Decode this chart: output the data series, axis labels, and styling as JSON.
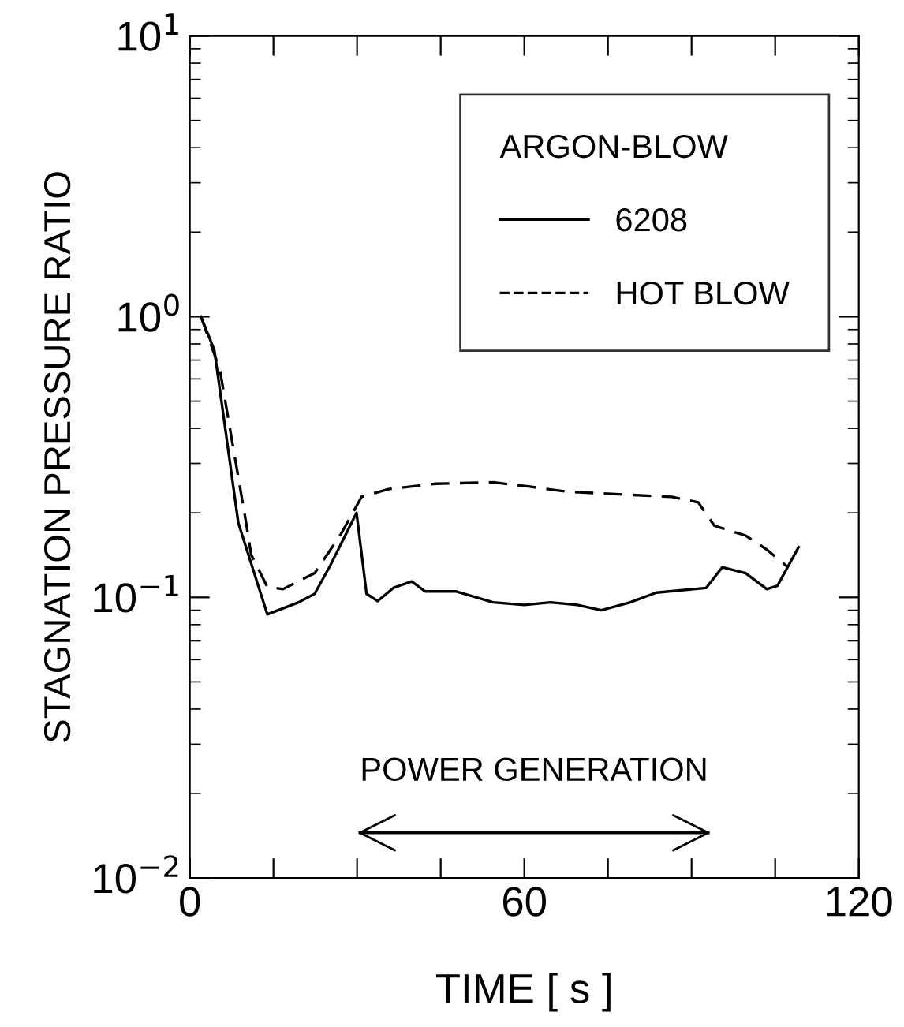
{
  "chart_data": {
    "type": "line",
    "xlabel": "TIME [ s ]",
    "ylabel": "STAGNATION PRESSURE RATIO",
    "legend_title": "ARGON-BLOW",
    "xlim": [
      0,
      120
    ],
    "ylim": [
      0.01,
      10
    ],
    "log": "y",
    "xticks": [
      0,
      {
        "value": 15,
        "label": null
      },
      {
        "value": 30,
        "label": null
      },
      {
        "value": 45,
        "label": null
      },
      60,
      {
        "value": 75,
        "label": null
      },
      {
        "value": 90,
        "label": null
      },
      {
        "value": 105,
        "label": null
      },
      120
    ],
    "yticks": [
      {
        "value": 0.01,
        "label": "10$^{−2}$"
      },
      {
        "value": 0.1,
        "label": "10$^{−1}$"
      },
      {
        "value": 1,
        "label": "10$^{0}$"
      },
      {
        "value": 10,
        "label": "10$^{1}$"
      }
    ],
    "grid": false,
    "legend": "top right",
    "marker": "none",
    "annotations": [
      {
        "text": "POWER GENERATION",
        "x": 61.75,
        "y": 0.0145
      }
    ],
    "series": [
      {
        "name": "6208",
        "color": "#000000",
        "line_style": "solid",
        "x": [
          2,
          4.4,
          8.7,
          13.9,
          19.5,
          22.4,
          25.2,
          29.9,
          31.7,
          33.7,
          36.5,
          39.8,
          42.2,
          47.8,
          54.4,
          60,
          64.7,
          69.5,
          73.8,
          79,
          83.7,
          92.6,
          95.5,
          99.7,
          103.5,
          105.4,
          109.2
        ],
        "values": [
          1.0,
          0.76,
          0.184,
          0.087,
          0.096,
          0.103,
          0.13,
          0.2,
          0.103,
          0.097,
          0.108,
          0.114,
          0.105,
          0.105,
          0.096,
          0.094,
          0.096,
          0.094,
          0.09,
          0.096,
          0.104,
          0.108,
          0.128,
          0.122,
          0.107,
          0.11,
          0.151
        ]
      },
      {
        "name": "HOT BLOW",
        "color": "#000000",
        "line_style": "dashed",
        "x": [
          2,
          5.4,
          10.1,
          11,
          13.9,
          16.7,
          22.4,
          27.1,
          30.8,
          35.6,
          44.1,
          54.4,
          61,
          67.6,
          77,
          86.5,
          91.2,
          94.1,
          99.7,
          103.5,
          107.3
        ],
        "values": [
          1.0,
          0.645,
          0.184,
          0.142,
          0.109,
          0.107,
          0.122,
          0.168,
          0.228,
          0.243,
          0.254,
          0.257,
          0.248,
          0.238,
          0.233,
          0.228,
          0.218,
          0.18,
          0.166,
          0.148,
          0.128
        ]
      },
      {
        "color": "#000000",
        "line_style": "solid",
        "x": [
          30.5,
          93
        ],
        "values": [
          0.0145,
          0.0145
        ]
      }
    ]
  }
}
